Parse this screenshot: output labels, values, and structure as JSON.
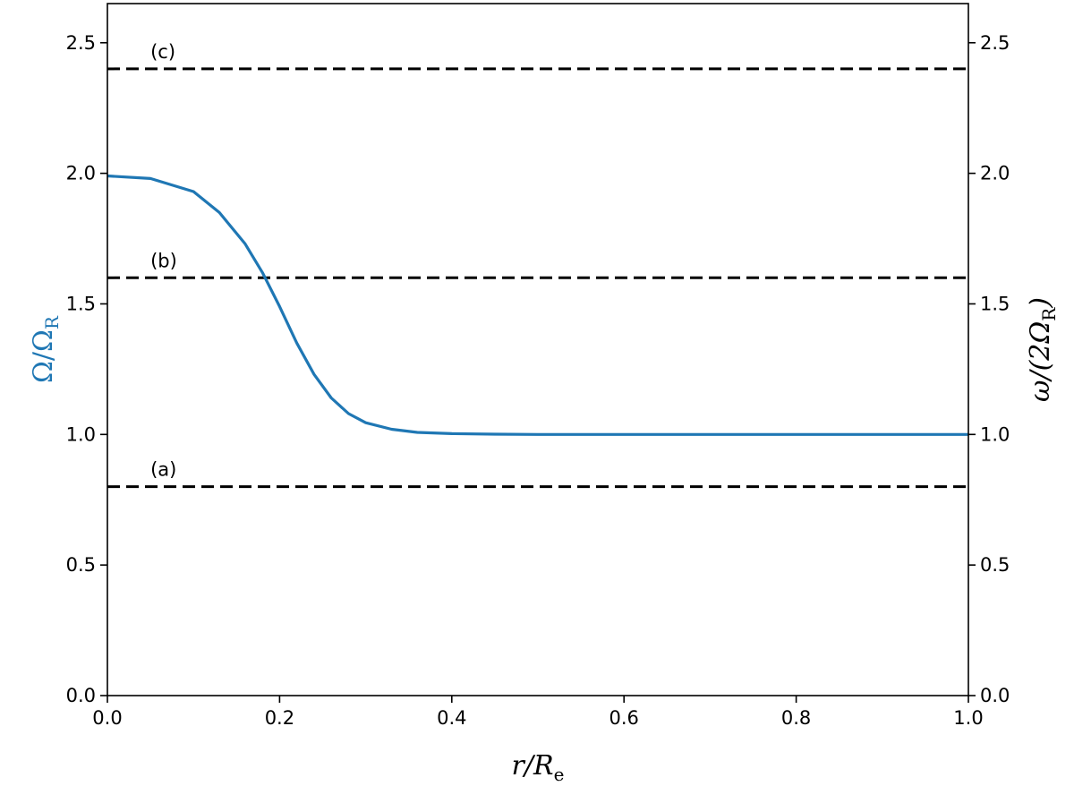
{
  "chart_data": {
    "type": "line",
    "title": "",
    "xlabel": {
      "main": "r/R",
      "sub": "e"
    },
    "ylabel_left": {
      "main": "Ω/Ω",
      "sub": "R",
      "color": "#1f77b4"
    },
    "ylabel_right": {
      "prefix": "ω/(2Ω",
      "sub": "R",
      "suffix": ")"
    },
    "xlim": [
      0.0,
      1.0
    ],
    "ylim": [
      0.0,
      2.65
    ],
    "x_ticks": [
      "0.0",
      "0.2",
      "0.4",
      "0.6",
      "0.8",
      "1.0"
    ],
    "x_tick_values": [
      0.0,
      0.2,
      0.4,
      0.6,
      0.8,
      1.0
    ],
    "y_ticks": [
      "0.0",
      "0.5",
      "1.0",
      "1.5",
      "2.0",
      "2.5"
    ],
    "y_tick_values": [
      0.0,
      0.5,
      1.0,
      1.5,
      2.0,
      2.5
    ],
    "y_ticks_right": [
      "0.0",
      "0.5",
      "1.0",
      "1.5",
      "2.0",
      "2.5"
    ],
    "grid": false,
    "series": [
      {
        "style": "solid",
        "color": "#1f77b4",
        "x": [
          0.0,
          0.05,
          0.1,
          0.13,
          0.16,
          0.18,
          0.2,
          0.22,
          0.24,
          0.26,
          0.28,
          0.3,
          0.33,
          0.36,
          0.4,
          0.45,
          0.5,
          0.6,
          0.7,
          0.8,
          0.9,
          1.0
        ],
        "y": [
          1.99,
          1.98,
          1.93,
          1.85,
          1.73,
          1.62,
          1.49,
          1.35,
          1.23,
          1.14,
          1.08,
          1.045,
          1.02,
          1.008,
          1.003,
          1.001,
          1.0,
          1.0,
          1.0,
          1.0,
          1.0,
          1.0
        ]
      }
    ],
    "reference_lines": [
      {
        "label": "(a)",
        "y": 0.8,
        "style": "dashed",
        "color": "#000000"
      },
      {
        "label": "(b)",
        "y": 1.6,
        "style": "dashed",
        "color": "#000000"
      },
      {
        "label": "(c)",
        "y": 2.4,
        "style": "dashed",
        "color": "#000000"
      }
    ]
  }
}
